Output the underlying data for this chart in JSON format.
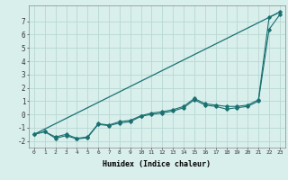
{
  "xlabel": "Humidex (Indice chaleur)",
  "ylabel": "",
  "bg_color": "#d8efec",
  "grid_color": "#b8d8d4",
  "line_color": "#1a7070",
  "xlim": [
    -0.5,
    23.5
  ],
  "ylim": [
    -2.5,
    8.2
  ],
  "xticks": [
    0,
    1,
    2,
    3,
    4,
    5,
    6,
    7,
    8,
    9,
    10,
    11,
    12,
    13,
    14,
    15,
    16,
    17,
    18,
    19,
    20,
    21,
    22,
    23
  ],
  "yticks": [
    -2,
    -1,
    0,
    1,
    2,
    3,
    4,
    5,
    6,
    7
  ],
  "line1_x": [
    0,
    1,
    2,
    3,
    4,
    5,
    6,
    7,
    8,
    9,
    10,
    11,
    12,
    13,
    14,
    15,
    16,
    17,
    18,
    19,
    20,
    21,
    22,
    23
  ],
  "line1_y": [
    -1.5,
    -1.3,
    -1.7,
    -1.5,
    -1.8,
    -1.7,
    -0.7,
    -0.8,
    -0.55,
    -0.45,
    -0.1,
    0.1,
    0.2,
    0.35,
    0.6,
    1.2,
    0.8,
    0.7,
    0.6,
    0.6,
    0.7,
    1.1,
    7.3,
    7.7
  ],
  "line2_x": [
    0,
    1,
    2,
    3,
    4,
    5,
    6,
    7,
    8,
    9,
    10,
    11,
    12,
    13,
    14,
    15,
    16,
    17,
    18,
    19,
    20,
    21,
    22,
    23
  ],
  "line2_y": [
    -1.5,
    -1.3,
    -1.8,
    -1.6,
    -1.85,
    -1.75,
    -0.75,
    -0.85,
    -0.65,
    -0.55,
    -0.15,
    0.0,
    0.1,
    0.25,
    0.5,
    1.1,
    0.7,
    0.6,
    0.4,
    0.5,
    0.6,
    1.0,
    6.4,
    7.5
  ],
  "line3_x": [
    0,
    23
  ],
  "line3_y": [
    -1.5,
    7.7
  ],
  "marker_x": [
    0,
    1,
    2,
    3,
    4,
    5,
    6,
    7,
    8,
    9,
    10,
    11,
    12,
    13,
    14,
    15,
    16,
    17,
    18,
    19,
    20,
    21,
    22,
    23
  ],
  "marker1_y": [
    -1.5,
    -1.3,
    -1.7,
    -1.5,
    -1.8,
    -1.7,
    -0.7,
    -0.8,
    -0.55,
    -0.45,
    -0.1,
    0.1,
    0.2,
    0.35,
    0.6,
    1.2,
    0.8,
    0.7,
    0.6,
    0.6,
    0.7,
    1.1,
    7.3,
    7.7
  ],
  "marker2_y": [
    -1.5,
    -1.3,
    -1.8,
    -1.6,
    -1.85,
    -1.75,
    -0.75,
    -0.85,
    -0.65,
    -0.55,
    -0.15,
    0.0,
    0.1,
    0.25,
    0.5,
    1.1,
    0.7,
    0.6,
    0.4,
    0.5,
    0.6,
    1.0,
    6.4,
    7.5
  ]
}
